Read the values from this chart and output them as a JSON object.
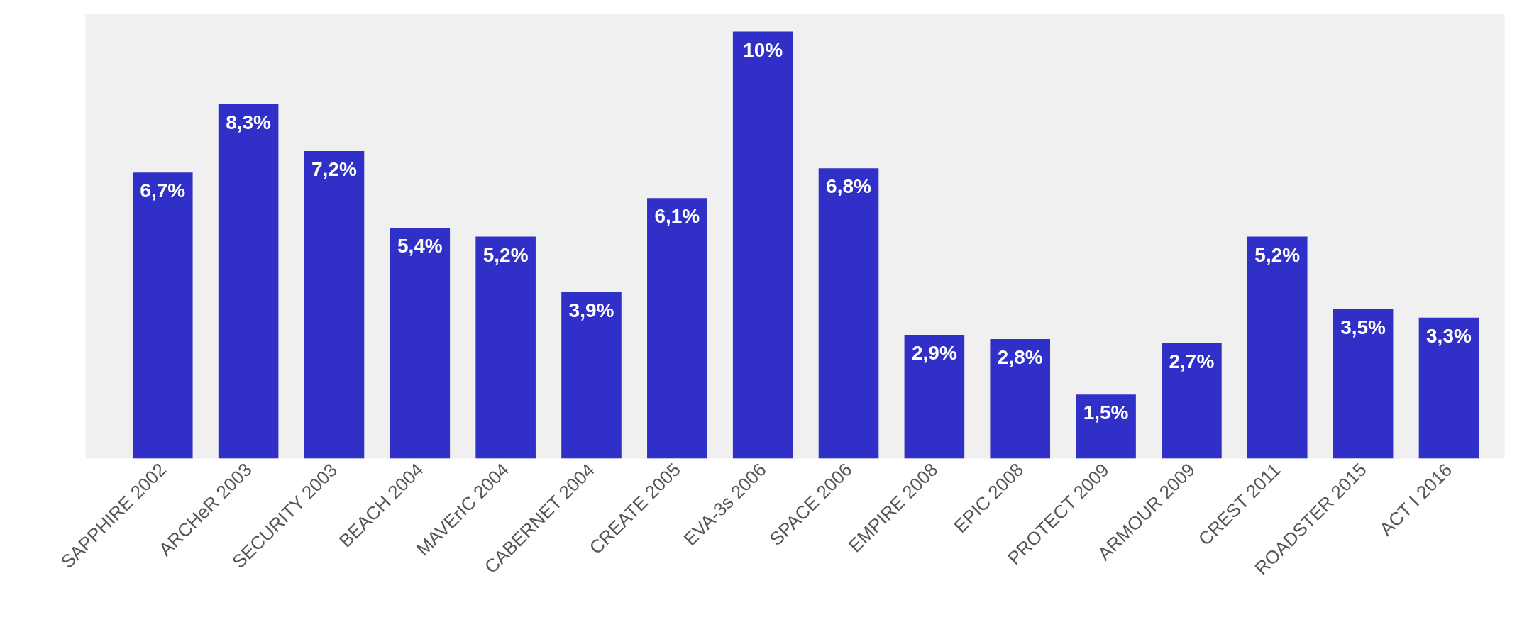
{
  "chart_data": {
    "type": "bar",
    "categories": [
      "SAPPHIRE 2002",
      "ARCHeR 2003",
      "SECURITY 2003",
      "BEACH 2004",
      "MAVErIC 2004",
      "CABERNET 2004",
      "CREATE 2005",
      "EVA-3s 2006",
      "SPACE 2006",
      "EMPIRE 2008",
      "EPIC 2008",
      "PROTECT 2009",
      "ARMOUR 2009",
      "CREST 2011",
      "ROADSTER 2015",
      "ACT I 2016"
    ],
    "values": [
      6.7,
      8.3,
      7.2,
      5.4,
      5.2,
      3.9,
      6.1,
      10,
      6.8,
      2.9,
      2.8,
      1.5,
      2.7,
      5.2,
      3.5,
      3.3
    ],
    "value_labels": [
      "6,7%",
      "8,3%",
      "7,2%",
      "5,4%",
      "5,2%",
      "3,9%",
      "6,1%",
      "10%",
      "6,8%",
      "2,9%",
      "2,8%",
      "1,5%",
      "2,7%",
      "5,2%",
      "3,5%",
      "3,3%"
    ],
    "color": "#3030c8"
  }
}
